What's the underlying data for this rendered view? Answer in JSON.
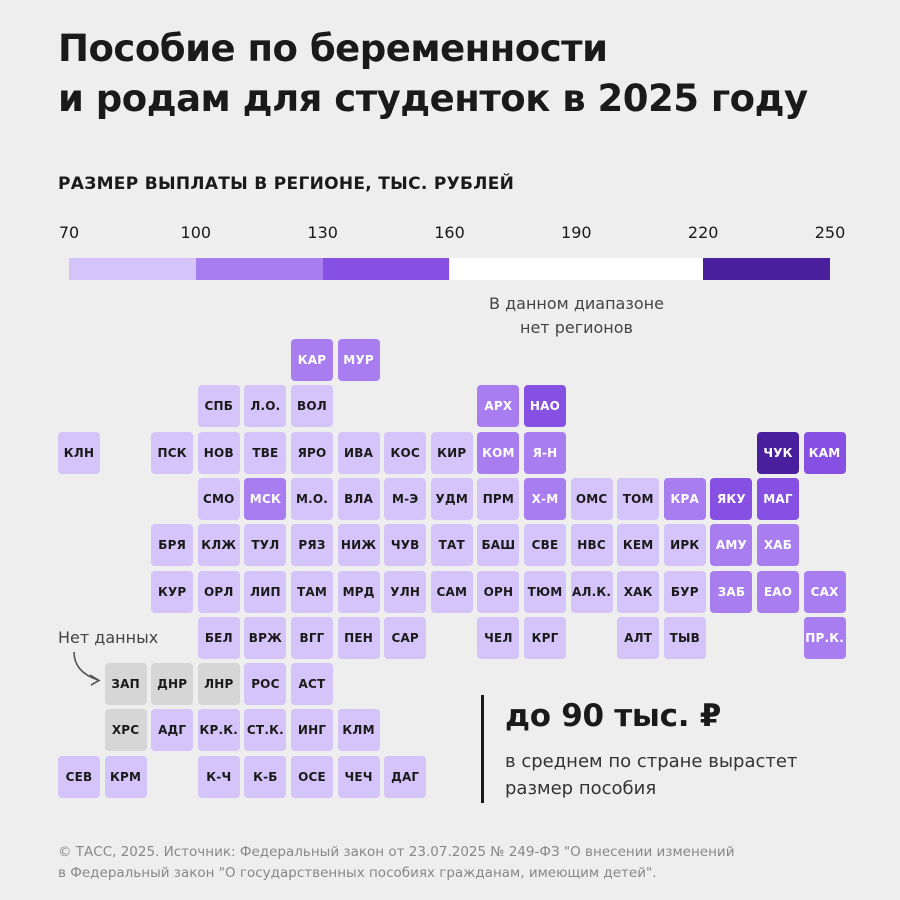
{
  "title_line1": "Пособие по беременности",
  "title_line2": "и родам для студенток в 2025 году",
  "subtitle": "РАЗМЕР ВЫПЛАТЫ В РЕГИОНЕ, ТЫС. РУБЛЕЙ",
  "scale_note_line1": "В данном диапазоне",
  "scale_note_line2": "нет регионов",
  "no_data_label": "Нет данных",
  "callout": {
    "value": "до 90 тыс. ₽",
    "text_line1": "в среднем по стране вырастет",
    "text_line2": "размер пособия"
  },
  "footer_line1": "© ТАСС, 2025. Источник: Федеральный закон от 23.07.2025 № 249-ФЗ \"О внесении изменений",
  "footer_line2": "в Федеральный закон \"О государственных пособиях гражданам, имеющим детей\".",
  "colors": {
    "c1": "#d4c4fa",
    "c2": "#a87df0",
    "c3": "#8650e3",
    "c4": "#ffffff",
    "c5": "#4a1f9e",
    "nodata": "#d6d6d6"
  },
  "chart_data": {
    "type": "heatmap",
    "title": "РАЗМЕР ВЫПЛАТЫ В РЕГИОНЕ, ТЫС. РУБЛЕЙ",
    "scale": {
      "ticks": [
        70,
        100,
        130,
        160,
        190,
        220,
        250
      ],
      "bins": [
        {
          "range": [
            70,
            100
          ],
          "color": "c1"
        },
        {
          "range": [
            100,
            130
          ],
          "color": "c2"
        },
        {
          "range": [
            130,
            160
          ],
          "color": "c3"
        },
        {
          "range": [
            160,
            220
          ],
          "color": "c4",
          "note": "В данном диапазоне нет регионов"
        },
        {
          "range": [
            220,
            250
          ],
          "color": "c5"
        }
      ]
    },
    "regions": [
      {
        "label": "КАР",
        "row": 0,
        "col": 5,
        "bin": "c2"
      },
      {
        "label": "МУР",
        "row": 0,
        "col": 6,
        "bin": "c2"
      },
      {
        "label": "СПБ",
        "row": 1,
        "col": 3,
        "bin": "c1"
      },
      {
        "label": "Л.О.",
        "row": 1,
        "col": 4,
        "bin": "c1"
      },
      {
        "label": "ВОЛ",
        "row": 1,
        "col": 5,
        "bin": "c1"
      },
      {
        "label": "АРХ",
        "row": 1,
        "col": 9,
        "bin": "c2"
      },
      {
        "label": "НАО",
        "row": 1,
        "col": 10,
        "bin": "c3"
      },
      {
        "label": "КЛН",
        "row": 2,
        "col": 0,
        "bin": "c1"
      },
      {
        "label": "ПСК",
        "row": 2,
        "col": 2,
        "bin": "c1"
      },
      {
        "label": "НОВ",
        "row": 2,
        "col": 3,
        "bin": "c1"
      },
      {
        "label": "ТВЕ",
        "row": 2,
        "col": 4,
        "bin": "c1"
      },
      {
        "label": "ЯРО",
        "row": 2,
        "col": 5,
        "bin": "c1"
      },
      {
        "label": "ИВА",
        "row": 2,
        "col": 6,
        "bin": "c1"
      },
      {
        "label": "КОС",
        "row": 2,
        "col": 7,
        "bin": "c1"
      },
      {
        "label": "КИР",
        "row": 2,
        "col": 8,
        "bin": "c1"
      },
      {
        "label": "КОМ",
        "row": 2,
        "col": 9,
        "bin": "c2"
      },
      {
        "label": "Я-Н",
        "row": 2,
        "col": 10,
        "bin": "c2"
      },
      {
        "label": "ЧУК",
        "row": 2,
        "col": 15,
        "bin": "c5"
      },
      {
        "label": "КАМ",
        "row": 2,
        "col": 16,
        "bin": "c3"
      },
      {
        "label": "СМО",
        "row": 3,
        "col": 3,
        "bin": "c1"
      },
      {
        "label": "МСК",
        "row": 3,
        "col": 4,
        "bin": "c2"
      },
      {
        "label": "М.О.",
        "row": 3,
        "col": 5,
        "bin": "c1"
      },
      {
        "label": "ВЛА",
        "row": 3,
        "col": 6,
        "bin": "c1"
      },
      {
        "label": "М-Э",
        "row": 3,
        "col": 7,
        "bin": "c1"
      },
      {
        "label": "УДМ",
        "row": 3,
        "col": 8,
        "bin": "c1"
      },
      {
        "label": "ПРМ",
        "row": 3,
        "col": 9,
        "bin": "c1"
      },
      {
        "label": "Х-М",
        "row": 3,
        "col": 10,
        "bin": "c2"
      },
      {
        "label": "ОМС",
        "row": 3,
        "col": 11,
        "bin": "c1"
      },
      {
        "label": "ТОМ",
        "row": 3,
        "col": 12,
        "bin": "c1"
      },
      {
        "label": "КРА",
        "row": 3,
        "col": 13,
        "bin": "c2"
      },
      {
        "label": "ЯКУ",
        "row": 3,
        "col": 14,
        "bin": "c3"
      },
      {
        "label": "МАГ",
        "row": 3,
        "col": 15,
        "bin": "c3"
      },
      {
        "label": "БРЯ",
        "row": 4,
        "col": 2,
        "bin": "c1"
      },
      {
        "label": "КЛЖ",
        "row": 4,
        "col": 3,
        "bin": "c1"
      },
      {
        "label": "ТУЛ",
        "row": 4,
        "col": 4,
        "bin": "c1"
      },
      {
        "label": "РЯЗ",
        "row": 4,
        "col": 5,
        "bin": "c1"
      },
      {
        "label": "НИЖ",
        "row": 4,
        "col": 6,
        "bin": "c1"
      },
      {
        "label": "ЧУВ",
        "row": 4,
        "col": 7,
        "bin": "c1"
      },
      {
        "label": "ТАТ",
        "row": 4,
        "col": 8,
        "bin": "c1"
      },
      {
        "label": "БАШ",
        "row": 4,
        "col": 9,
        "bin": "c1"
      },
      {
        "label": "СВЕ",
        "row": 4,
        "col": 10,
        "bin": "c1"
      },
      {
        "label": "НВС",
        "row": 4,
        "col": 11,
        "bin": "c1"
      },
      {
        "label": "КЕМ",
        "row": 4,
        "col": 12,
        "bin": "c1"
      },
      {
        "label": "ИРК",
        "row": 4,
        "col": 13,
        "bin": "c1"
      },
      {
        "label": "АМУ",
        "row": 4,
        "col": 14,
        "bin": "c2"
      },
      {
        "label": "ХАБ",
        "row": 4,
        "col": 15,
        "bin": "c2"
      },
      {
        "label": "КУР",
        "row": 5,
        "col": 2,
        "bin": "c1"
      },
      {
        "label": "ОРЛ",
        "row": 5,
        "col": 3,
        "bin": "c1"
      },
      {
        "label": "ЛИП",
        "row": 5,
        "col": 4,
        "bin": "c1"
      },
      {
        "label": "ТАМ",
        "row": 5,
        "col": 5,
        "bin": "c1"
      },
      {
        "label": "МРД",
        "row": 5,
        "col": 6,
        "bin": "c1"
      },
      {
        "label": "УЛН",
        "row": 5,
        "col": 7,
        "bin": "c1"
      },
      {
        "label": "САМ",
        "row": 5,
        "col": 8,
        "bin": "c1"
      },
      {
        "label": "ОРН",
        "row": 5,
        "col": 9,
        "bin": "c1"
      },
      {
        "label": "ТЮМ",
        "row": 5,
        "col": 10,
        "bin": "c1"
      },
      {
        "label": "АЛ.К.",
        "row": 5,
        "col": 11,
        "bin": "c1"
      },
      {
        "label": "ХАК",
        "row": 5,
        "col": 12,
        "bin": "c1"
      },
      {
        "label": "БУР",
        "row": 5,
        "col": 13,
        "bin": "c1"
      },
      {
        "label": "ЗАБ",
        "row": 5,
        "col": 14,
        "bin": "c2"
      },
      {
        "label": "ЕАО",
        "row": 5,
        "col": 15,
        "bin": "c2"
      },
      {
        "label": "САХ",
        "row": 5,
        "col": 16,
        "bin": "c2"
      },
      {
        "label": "БЕЛ",
        "row": 6,
        "col": 3,
        "bin": "c1"
      },
      {
        "label": "ВРЖ",
        "row": 6,
        "col": 4,
        "bin": "c1"
      },
      {
        "label": "ВГГ",
        "row": 6,
        "col": 5,
        "bin": "c1"
      },
      {
        "label": "ПЕН",
        "row": 6,
        "col": 6,
        "bin": "c1"
      },
      {
        "label": "САР",
        "row": 6,
        "col": 7,
        "bin": "c1"
      },
      {
        "label": "ЧЕЛ",
        "row": 6,
        "col": 9,
        "bin": "c1"
      },
      {
        "label": "КРГ",
        "row": 6,
        "col": 10,
        "bin": "c1"
      },
      {
        "label": "АЛТ",
        "row": 6,
        "col": 12,
        "bin": "c1"
      },
      {
        "label": "ТЫВ",
        "row": 6,
        "col": 13,
        "bin": "c1"
      },
      {
        "label": "ПР.К.",
        "row": 6,
        "col": 16,
        "bin": "c2"
      },
      {
        "label": "ЗАП",
        "row": 7,
        "col": 1,
        "bin": "nodata"
      },
      {
        "label": "ДНР",
        "row": 7,
        "col": 2,
        "bin": "nodata"
      },
      {
        "label": "ЛНР",
        "row": 7,
        "col": 3,
        "bin": "nodata"
      },
      {
        "label": "РОС",
        "row": 7,
        "col": 4,
        "bin": "c1"
      },
      {
        "label": "АСТ",
        "row": 7,
        "col": 5,
        "bin": "c1"
      },
      {
        "label": "ХРС",
        "row": 8,
        "col": 1,
        "bin": "nodata"
      },
      {
        "label": "АДГ",
        "row": 8,
        "col": 2,
        "bin": "c1"
      },
      {
        "label": "КР.К.",
        "row": 8,
        "col": 3,
        "bin": "c1"
      },
      {
        "label": "СТ.К.",
        "row": 8,
        "col": 4,
        "bin": "c1"
      },
      {
        "label": "ИНГ",
        "row": 8,
        "col": 5,
        "bin": "c1"
      },
      {
        "label": "КЛМ",
        "row": 8,
        "col": 6,
        "bin": "c1"
      },
      {
        "label": "СЕВ",
        "row": 9,
        "col": 0,
        "bin": "c1"
      },
      {
        "label": "КРМ",
        "row": 9,
        "col": 1,
        "bin": "c1"
      },
      {
        "label": "К-Ч",
        "row": 9,
        "col": 3,
        "bin": "c1"
      },
      {
        "label": "К-Б",
        "row": 9,
        "col": 4,
        "bin": "c1"
      },
      {
        "label": "ОСЕ",
        "row": 9,
        "col": 5,
        "bin": "c1"
      },
      {
        "label": "ЧЕЧ",
        "row": 9,
        "col": 6,
        "bin": "c1"
      },
      {
        "label": "ДАГ",
        "row": 9,
        "col": 7,
        "bin": "c1"
      }
    ]
  }
}
